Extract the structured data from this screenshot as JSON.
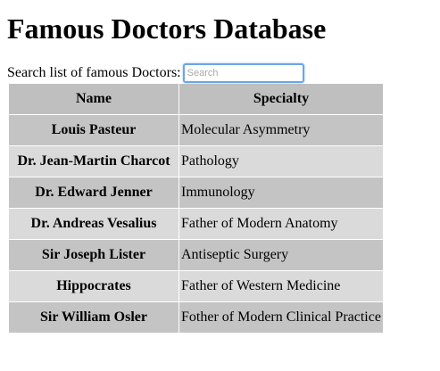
{
  "page": {
    "title": "Famous Doctors Database"
  },
  "search": {
    "label": "Search list of famous Doctors:",
    "placeholder": "Search",
    "value": ""
  },
  "table": {
    "headers": [
      "Name",
      "Specialty"
    ],
    "rows": [
      {
        "name": "Louis Pasteur",
        "specialty": "Molecular Asymmetry"
      },
      {
        "name": "Dr. Jean-Martin Charcot",
        "specialty": "Pathology"
      },
      {
        "name": "Dr. Edward Jenner",
        "specialty": "Immunology"
      },
      {
        "name": "Dr. Andreas Vesalius",
        "specialty": "Father of Modern Anatomy"
      },
      {
        "name": "Sir Joseph Lister",
        "specialty": "Antiseptic Surgery"
      },
      {
        "name": "Hippocrates",
        "specialty": "Father of Western Medicine"
      },
      {
        "name": "Sir William Osler",
        "specialty": "Fother of Modern Clinical Practice"
      }
    ]
  },
  "colors": {
    "header_bg": "#bfbfbf",
    "row_dark": "#c4c4c4",
    "row_light": "#dadada",
    "input_focus_border": "#6aa6e8"
  }
}
